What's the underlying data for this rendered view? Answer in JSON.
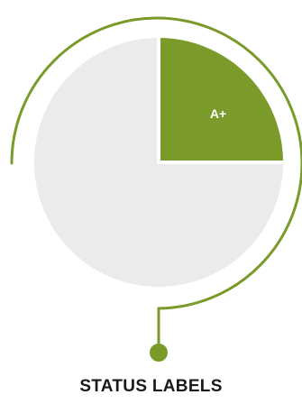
{
  "segment_label": "A+",
  "caption": "STATUS LABELS",
  "chart_data": {
    "type": "pie",
    "slices": [
      {
        "label": "A+",
        "fraction": 0.25,
        "color": "#7a9a2a"
      },
      {
        "label": "",
        "fraction": 0.75,
        "color": "#ebebeb"
      }
    ]
  },
  "colors": {
    "accent": "#7a9a2a",
    "pie_background": "#ebebeb",
    "text": "#1a1a1a"
  }
}
